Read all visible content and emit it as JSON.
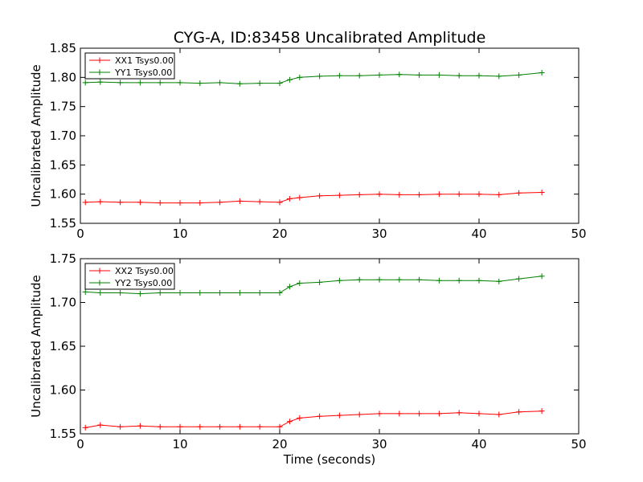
{
  "figure": {
    "title": "CYG-A, ID:83458 Uncalibrated Amplitude",
    "xlabel": "Time (seconds)",
    "colors": {
      "xx": "#ff0000",
      "yy": "#008000"
    }
  },
  "chart_data": [
    {
      "type": "line",
      "title": "CYG-A, ID:83458 Uncalibrated Amplitude",
      "xlabel": "",
      "ylabel": "Uncalibrated Amplitude",
      "xlim": [
        0,
        50
      ],
      "ylim": [
        1.55,
        1.85
      ],
      "xticks": [
        "0",
        "10",
        "20",
        "30",
        "40",
        "50"
      ],
      "yticks": [
        "1.55",
        "1.60",
        "1.65",
        "1.70",
        "1.75",
        "1.80",
        "1.85"
      ],
      "grid": false,
      "legend_position": "top-left",
      "series": [
        {
          "name": "XX1 Tsys0.00",
          "color": "#ff0000",
          "x": [
            0.5,
            2,
            4,
            6,
            8,
            10,
            12,
            14,
            16,
            18,
            20,
            21,
            22,
            24,
            26,
            28,
            30,
            32,
            34,
            36,
            38,
            40,
            42,
            44,
            46.3
          ],
          "values": [
            1.586,
            1.587,
            1.586,
            1.586,
            1.585,
            1.585,
            1.585,
            1.586,
            1.588,
            1.587,
            1.586,
            1.592,
            1.594,
            1.597,
            1.598,
            1.599,
            1.6,
            1.599,
            1.599,
            1.6,
            1.6,
            1.6,
            1.599,
            1.602,
            1.603
          ]
        },
        {
          "name": "YY1 Tsys0.00",
          "color": "#008000",
          "x": [
            0.5,
            2,
            4,
            6,
            8,
            10,
            12,
            14,
            16,
            18,
            20,
            21,
            22,
            24,
            26,
            28,
            30,
            32,
            34,
            36,
            38,
            40,
            42,
            44,
            46.3
          ],
          "values": [
            1.791,
            1.792,
            1.791,
            1.791,
            1.791,
            1.791,
            1.79,
            1.791,
            1.789,
            1.79,
            1.79,
            1.796,
            1.8,
            1.802,
            1.803,
            1.803,
            1.804,
            1.805,
            1.804,
            1.804,
            1.803,
            1.803,
            1.802,
            1.804,
            1.808
          ]
        }
      ]
    },
    {
      "type": "line",
      "title": "",
      "xlabel": "Time (seconds)",
      "ylabel": "Uncalibrated Amplitude",
      "xlim": [
        0,
        50
      ],
      "ylim": [
        1.55,
        1.75
      ],
      "xticks": [
        "0",
        "10",
        "20",
        "30",
        "40",
        "50"
      ],
      "yticks": [
        "1.55",
        "1.60",
        "1.65",
        "1.70",
        "1.75"
      ],
      "grid": false,
      "legend_position": "top-left",
      "series": [
        {
          "name": "XX2 Tsys0.00",
          "color": "#ff0000",
          "x": [
            0.5,
            2,
            4,
            6,
            8,
            10,
            12,
            14,
            16,
            18,
            20,
            21,
            22,
            24,
            26,
            28,
            30,
            32,
            34,
            36,
            38,
            40,
            42,
            44,
            46.3
          ],
          "values": [
            1.557,
            1.56,
            1.558,
            1.559,
            1.558,
            1.558,
            1.558,
            1.558,
            1.558,
            1.558,
            1.558,
            1.564,
            1.568,
            1.57,
            1.571,
            1.572,
            1.573,
            1.573,
            1.573,
            1.573,
            1.574,
            1.573,
            1.572,
            1.575,
            1.576
          ]
        },
        {
          "name": "YY2 Tsys0.00",
          "color": "#008000",
          "x": [
            0.5,
            2,
            4,
            6,
            8,
            10,
            12,
            14,
            16,
            18,
            20,
            21,
            22,
            24,
            26,
            28,
            30,
            32,
            34,
            36,
            38,
            40,
            42,
            44,
            46.3
          ],
          "values": [
            1.712,
            1.711,
            1.711,
            1.71,
            1.711,
            1.711,
            1.711,
            1.711,
            1.711,
            1.711,
            1.711,
            1.718,
            1.722,
            1.723,
            1.725,
            1.726,
            1.726,
            1.726,
            1.726,
            1.725,
            1.725,
            1.725,
            1.724,
            1.727,
            1.73
          ]
        }
      ]
    }
  ]
}
